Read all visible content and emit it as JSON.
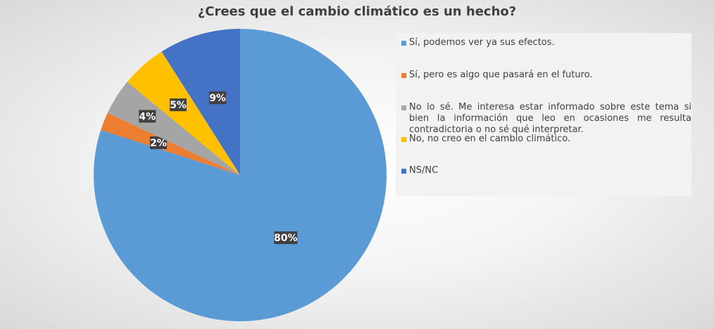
{
  "chart_data": {
    "type": "pie",
    "title": "¿Crees que el cambio climático es un hecho?",
    "categories": [
      "Sí, podemos ver ya sus efectos.",
      "Sí, pero es algo que pasará en el futuro.",
      "No lo sé. Me interesa estar informado sobre este tema si bien la información que leo en ocasiones me resulta contradictoria o no sé qué interpretar.",
      "No, no creo en el cambio climático.",
      "NS/NC"
    ],
    "values": [
      80,
      2,
      4,
      5,
      9
    ],
    "data_labels": [
      "80%",
      "2%",
      "4%",
      "5%",
      "9%"
    ],
    "colors": [
      "#5b9bd5",
      "#ed7d31",
      "#a5a5a5",
      "#ffc000",
      "#4472c4"
    ],
    "legend_position": "right"
  }
}
